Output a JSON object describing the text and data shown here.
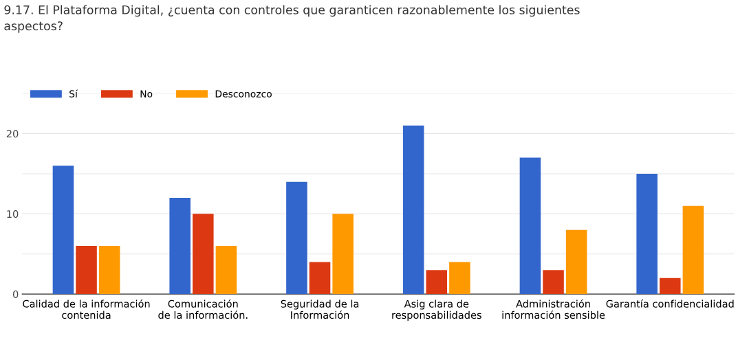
{
  "chart_data": {
    "type": "bar",
    "title": "9.17. El Plataforma Digital, ¿cuenta con controles que garanticen razonablemente los siguientes\naspectos?",
    "categories": [
      "Calidad de la información\ncontenida",
      "Comunicación\nde la información.",
      "Seguridad de la\nInformación",
      "Asig clara de\nresponsabilidades",
      "Administración\ninformación sensible",
      "Garantía confidencialidad"
    ],
    "series": [
      {
        "name": "Sí",
        "color": "#3366cc",
        "values": [
          16,
          12,
          14,
          21,
          17,
          15
        ]
      },
      {
        "name": "No",
        "color": "#dc3912",
        "values": [
          6,
          10,
          4,
          3,
          3,
          2
        ]
      },
      {
        "name": "Desconozco",
        "color": "#ff9900",
        "values": [
          6,
          6,
          10,
          4,
          8,
          11
        ]
      }
    ],
    "ylim": [
      0,
      25
    ],
    "yticks": [
      0,
      {
        "value": 5,
        "label": null
      },
      10,
      {
        "value": 15,
        "label": null
      },
      20,
      {
        "value": 25,
        "label": null
      }
    ],
    "grid": "y",
    "legend": "top left"
  }
}
